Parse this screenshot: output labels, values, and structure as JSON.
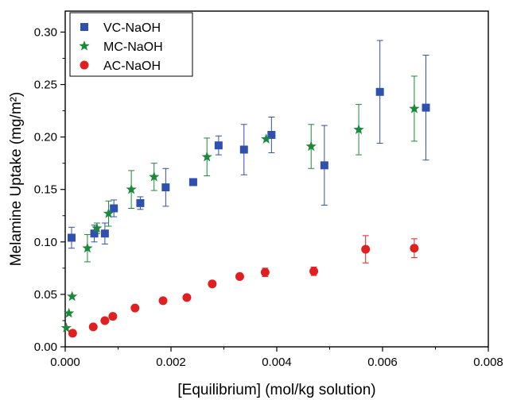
{
  "chart_data": {
    "type": "scatter",
    "title": "",
    "xlabel": "[Equilibrium] (mol/kg solution)",
    "ylabel": "Melamine Uptake (mg/m²)",
    "xlim": [
      0.0,
      0.008
    ],
    "ylim": [
      0.0,
      0.32
    ],
    "x_ticks": [
      "0.000",
      "0.002",
      "0.004",
      "0.006",
      "0.008"
    ],
    "y_ticks": [
      "0.00",
      "0.05",
      "0.10",
      "0.15",
      "0.20",
      "0.25",
      "0.30"
    ],
    "x_tick_values": [
      0.0,
      0.002,
      0.004,
      0.006,
      0.008
    ],
    "y_tick_values": [
      0.0,
      0.05,
      0.1,
      0.15,
      0.2,
      0.25,
      0.3
    ],
    "grid": false,
    "legend_position": "top-left",
    "series": [
      {
        "name": "VC-NaOH",
        "marker": "square",
        "color": "#3050b0",
        "points": [
          {
            "x": 0.00012,
            "y": 0.104,
            "err": 0.01
          },
          {
            "x": 0.00055,
            "y": 0.108,
            "err": 0.008
          },
          {
            "x": 0.00075,
            "y": 0.108,
            "err": 0.01
          },
          {
            "x": 0.00092,
            "y": 0.132,
            "err": 0.008
          },
          {
            "x": 0.00142,
            "y": 0.137,
            "err": 0.006
          },
          {
            "x": 0.0019,
            "y": 0.152,
            "err": 0.018
          },
          {
            "x": 0.00242,
            "y": 0.157,
            "err": 0.0
          },
          {
            "x": 0.0029,
            "y": 0.192,
            "err": 0.009
          },
          {
            "x": 0.00338,
            "y": 0.188,
            "err": 0.024
          },
          {
            "x": 0.0039,
            "y": 0.202,
            "err": 0.017
          },
          {
            "x": 0.0049,
            "y": 0.173,
            "err": 0.038
          },
          {
            "x": 0.00595,
            "y": 0.243,
            "err": 0.049
          },
          {
            "x": 0.00682,
            "y": 0.228,
            "err": 0.05
          }
        ]
      },
      {
        "name": "MC-NaOH",
        "marker": "star",
        "color": "#1a8a3a",
        "points": [
          {
            "x": 2e-05,
            "y": 0.018,
            "err": 0.0
          },
          {
            "x": 7e-05,
            "y": 0.032,
            "err": 0.0
          },
          {
            "x": 0.00013,
            "y": 0.048,
            "err": 0.0
          },
          {
            "x": 0.00042,
            "y": 0.094,
            "err": 0.013
          },
          {
            "x": 0.0006,
            "y": 0.113,
            "err": 0.005
          },
          {
            "x": 0.00082,
            "y": 0.127,
            "err": 0.012
          },
          {
            "x": 0.00125,
            "y": 0.15,
            "err": 0.018
          },
          {
            "x": 0.00168,
            "y": 0.162,
            "err": 0.013
          },
          {
            "x": 0.00268,
            "y": 0.181,
            "err": 0.018
          },
          {
            "x": 0.0038,
            "y": 0.198,
            "err": 0.0
          },
          {
            "x": 0.00465,
            "y": 0.191,
            "err": 0.021
          },
          {
            "x": 0.00555,
            "y": 0.207,
            "err": 0.024
          },
          {
            "x": 0.0066,
            "y": 0.227,
            "err": 0.031
          }
        ]
      },
      {
        "name": "AC-NaOH",
        "marker": "circle",
        "color": "#e02020",
        "points": [
          {
            "x": 0.00014,
            "y": 0.013,
            "err": 0.0
          },
          {
            "x": 0.00053,
            "y": 0.019,
            "err": 0.0
          },
          {
            "x": 0.00075,
            "y": 0.025,
            "err": 0.0
          },
          {
            "x": 0.0009,
            "y": 0.029,
            "err": 0.0
          },
          {
            "x": 0.00132,
            "y": 0.037,
            "err": 0.0
          },
          {
            "x": 0.00185,
            "y": 0.044,
            "err": 0.0
          },
          {
            "x": 0.0023,
            "y": 0.047,
            "err": 0.0
          },
          {
            "x": 0.00278,
            "y": 0.06,
            "err": 0.0
          },
          {
            "x": 0.0033,
            "y": 0.067,
            "err": 0.0
          },
          {
            "x": 0.00378,
            "y": 0.071,
            "err": 0.004
          },
          {
            "x": 0.0047,
            "y": 0.072,
            "err": 0.004
          },
          {
            "x": 0.00568,
            "y": 0.093,
            "err": 0.013
          },
          {
            "x": 0.0066,
            "y": 0.094,
            "err": 0.009
          }
        ]
      }
    ]
  }
}
